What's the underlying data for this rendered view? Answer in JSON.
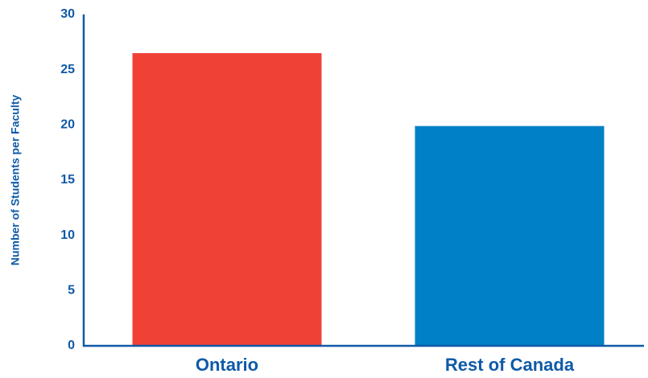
{
  "chart_data": {
    "type": "bar",
    "title": "",
    "xlabel": "",
    "ylabel": "Number of Students per Faculty",
    "categories": [
      "Ontario",
      "Rest of Canada"
    ],
    "values": [
      26.5,
      19.9
    ],
    "ylim": [
      0,
      30
    ],
    "yticks": [
      "0",
      "5",
      "10",
      "15",
      "20",
      "25",
      "30"
    ],
    "grid": false,
    "legend": "none",
    "bar_colors": [
      "#ef4136",
      "#0080c6"
    ],
    "axis_color": "#0f5aa8",
    "text_color": "#0f5aa8"
  }
}
